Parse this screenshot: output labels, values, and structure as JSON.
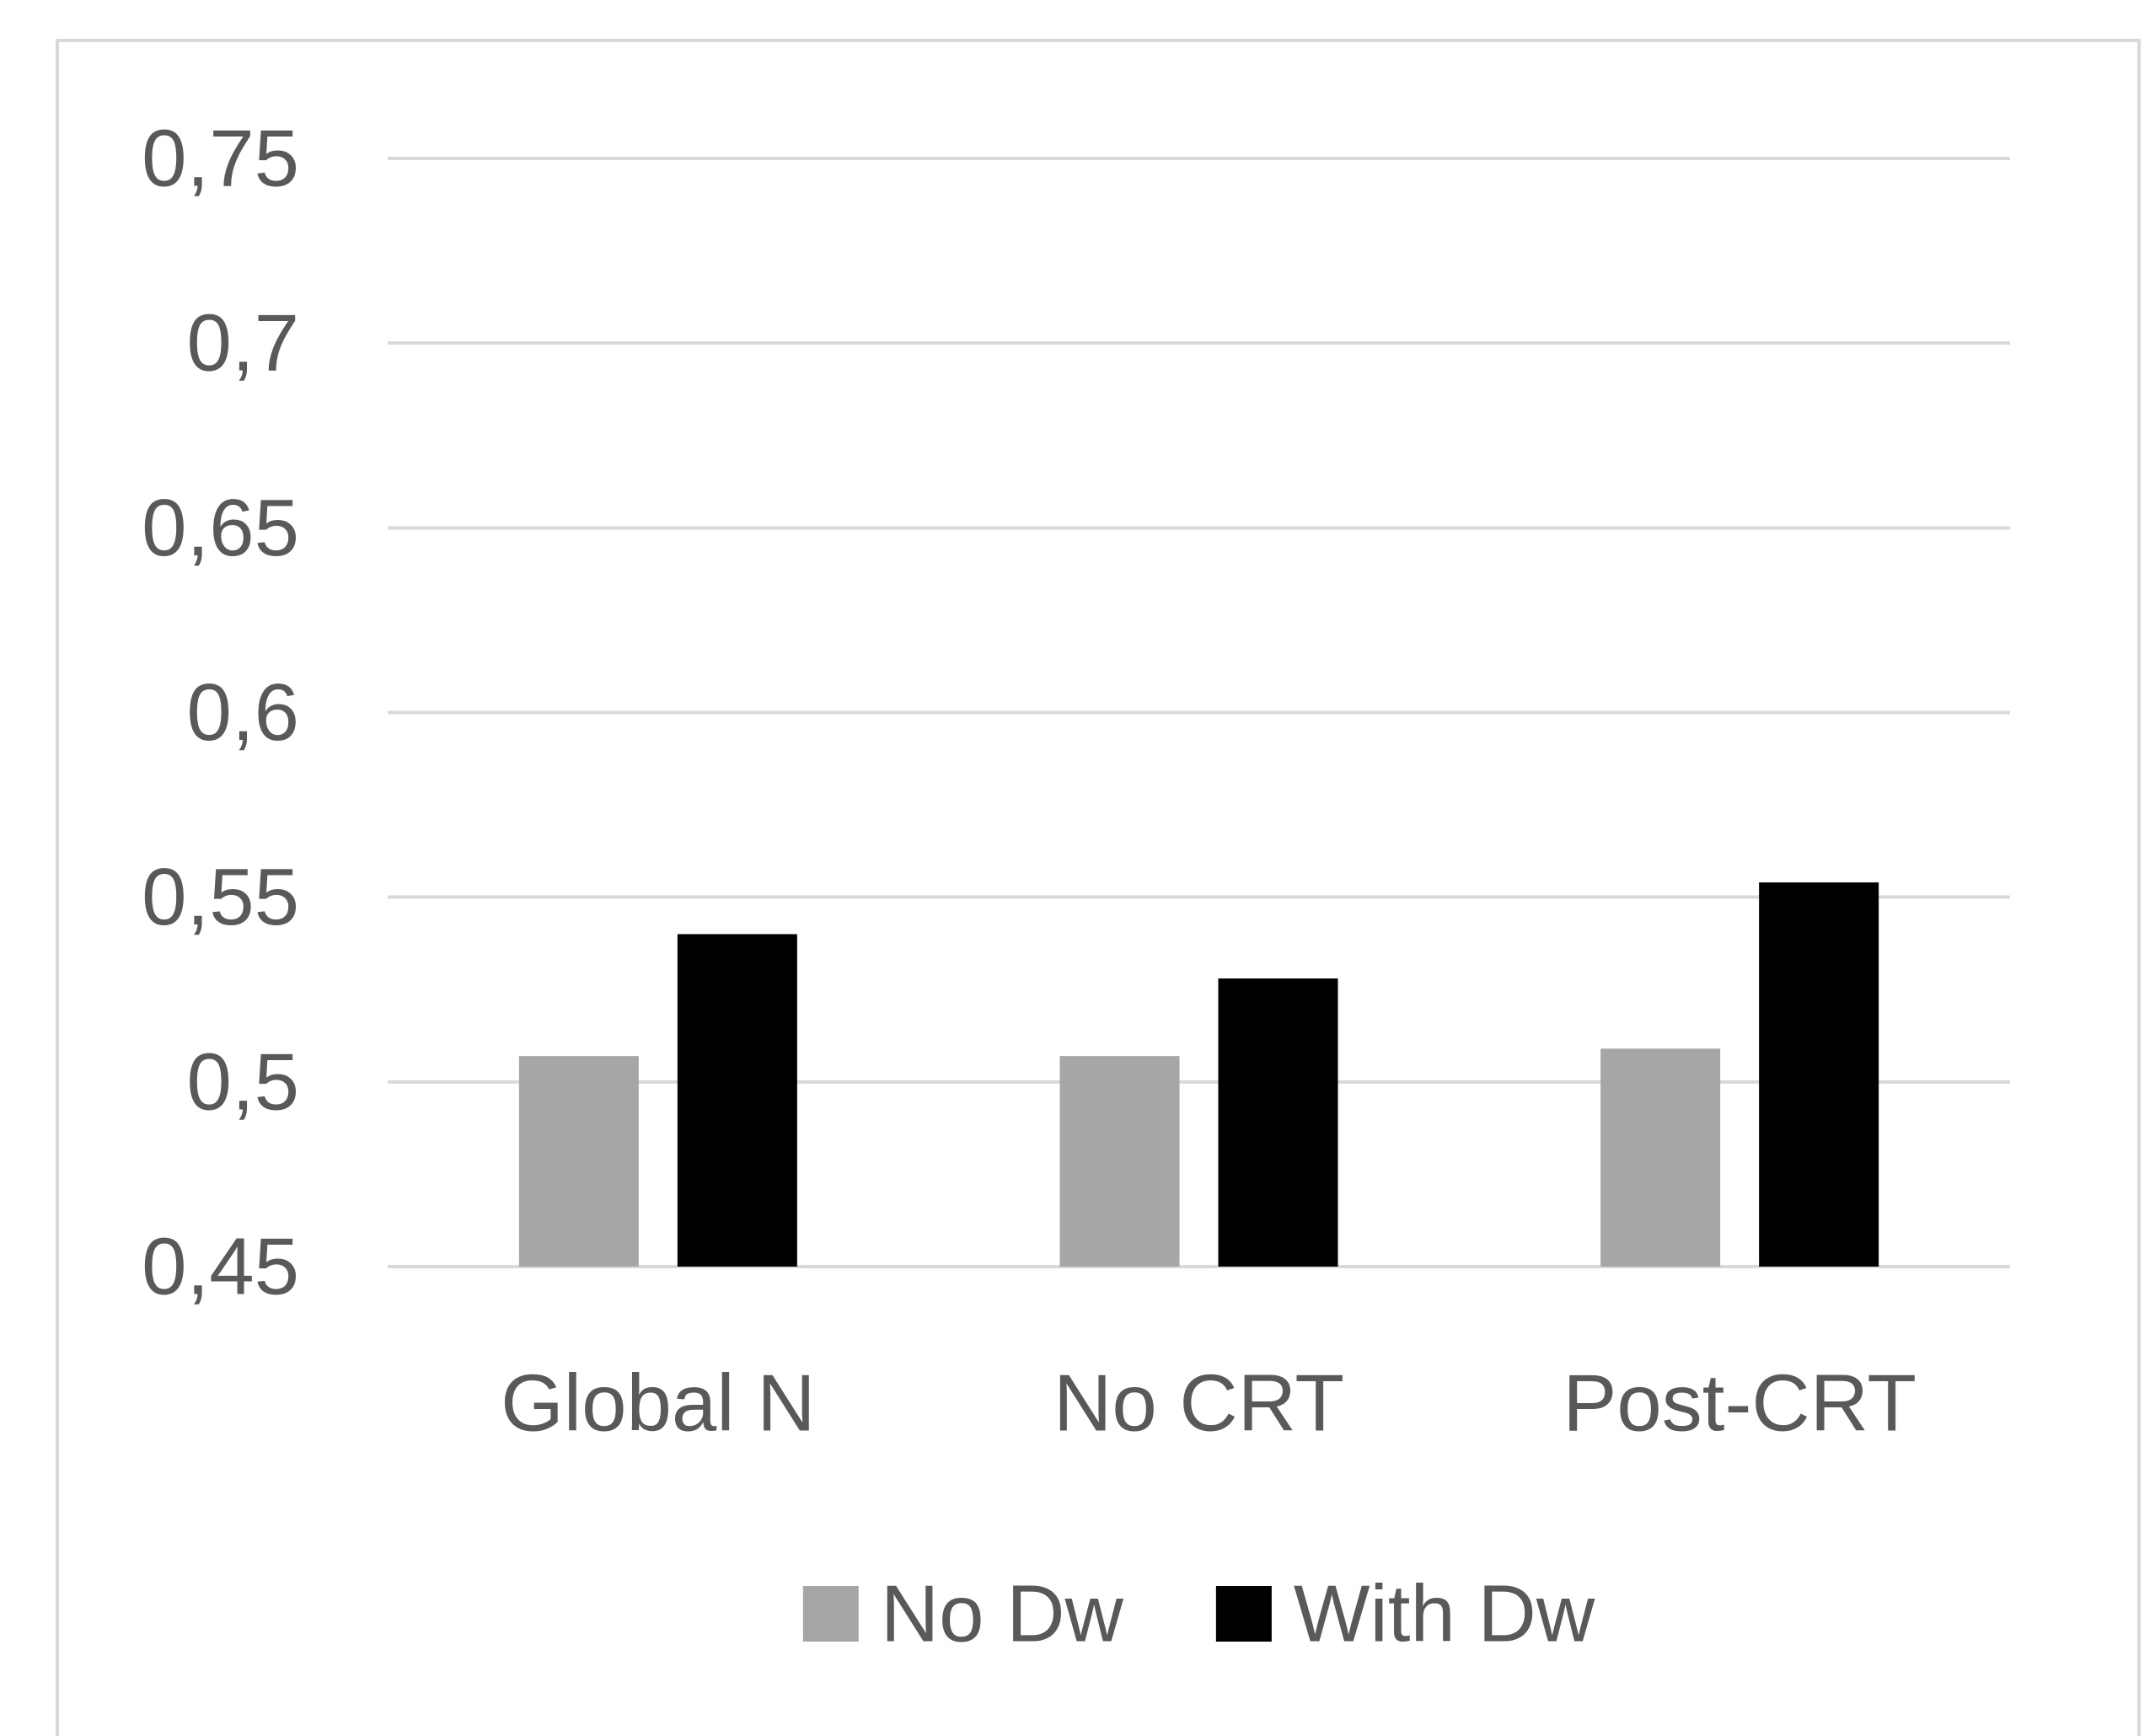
{
  "chart_data": {
    "type": "bar",
    "categories": [
      "Global N",
      "No CRT",
      "Post-CRT"
    ],
    "series": [
      {
        "name": "No Dw",
        "color": "#a6a6a6",
        "values": [
          0.507,
          0.507,
          0.509
        ]
      },
      {
        "name": "With Dw",
        "color": "#000000",
        "values": [
          0.54,
          0.528,
          0.554
        ]
      }
    ],
    "ylim": [
      0.45,
      0.75
    ],
    "yticks": [
      0.45,
      0.5,
      0.55,
      0.6,
      0.65,
      0.7,
      0.75
    ],
    "ytick_labels": [
      "0,45",
      "0,5",
      "0,55",
      "0,6",
      "0,65",
      "0,7",
      "0,75"
    ],
    "grid": true,
    "legend_position": "bottom",
    "xlabel": "",
    "ylabel": ""
  }
}
